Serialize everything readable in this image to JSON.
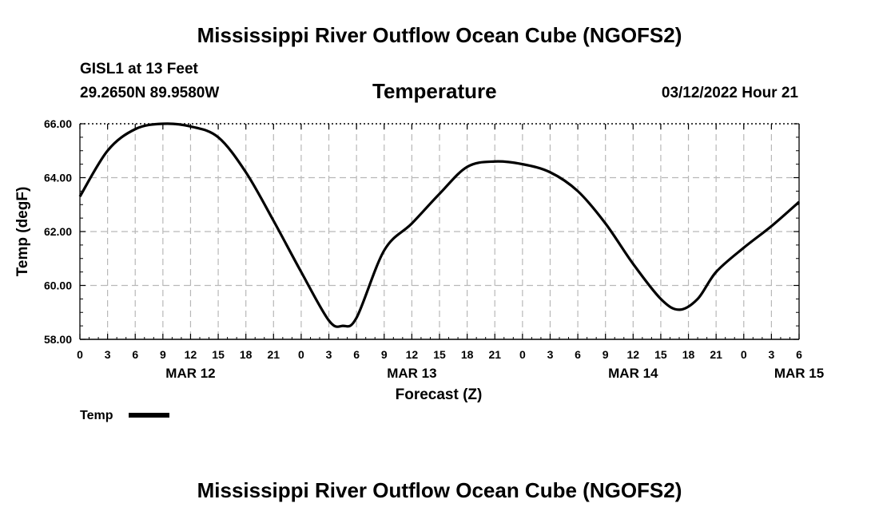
{
  "header": {
    "title": "Mississippi River Outflow Ocean Cube (NGOFS2)",
    "station": "GISL1 at 13 Feet",
    "coords": "29.2650N  89.9580W",
    "variable": "Temperature",
    "datetime": "03/12/2022 Hour 21"
  },
  "footer": {
    "title": "Mississippi River Outflow Ocean Cube (NGOFS2)"
  },
  "chart_data": {
    "type": "line",
    "title": "Temperature",
    "xlabel": "Forecast (Z)",
    "ylabel": "Temp (degF)",
    "xlim": [
      0,
      78
    ],
    "ylim": [
      58,
      66
    ],
    "grid": true,
    "x_tick_labels": [
      "0",
      "3",
      "6",
      "9",
      "12",
      "15",
      "18",
      "21",
      "0",
      "3",
      "6",
      "9",
      "12",
      "15",
      "18",
      "21",
      "0",
      "3",
      "6",
      "9",
      "12",
      "15",
      "18",
      "21",
      "0",
      "3",
      "6"
    ],
    "y_tick_labels": [
      "58.00",
      "60.00",
      "62.00",
      "64.00",
      "66.00"
    ],
    "day_labels": [
      {
        "label": "MAR 12",
        "hour": 12
      },
      {
        "label": "MAR 13",
        "hour": 36
      },
      {
        "label": "MAR 14",
        "hour": 60
      },
      {
        "label": "MAR 15",
        "hour": 78
      }
    ],
    "legend": {
      "label": "Temp",
      "placement": "bottom-left"
    },
    "series": [
      {
        "name": "Temp",
        "color": "#000000",
        "x": [
          0,
          3,
          6,
          9,
          12,
          15,
          18,
          21,
          24,
          27,
          28.5,
          30,
          33,
          36,
          39,
          42,
          45,
          48,
          51,
          54,
          57,
          60,
          63,
          65,
          67,
          69,
          72,
          75,
          78
        ],
        "values": [
          63.3,
          65.0,
          65.8,
          66.0,
          65.9,
          65.5,
          64.2,
          62.4,
          60.5,
          58.7,
          58.5,
          58.8,
          61.3,
          62.3,
          63.4,
          64.4,
          64.6,
          64.5,
          64.2,
          63.5,
          62.3,
          60.8,
          59.5,
          59.1,
          59.5,
          60.5,
          61.4,
          62.2,
          63.1
        ]
      }
    ]
  }
}
